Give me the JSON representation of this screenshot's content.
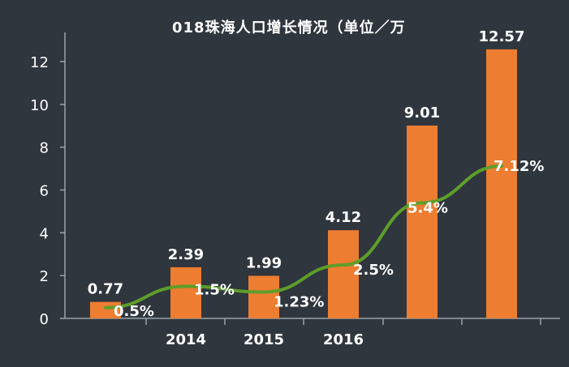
{
  "chart_data": {
    "type": "bar",
    "title": "018珠海人口增长情况（单位／万",
    "categories": [
      "",
      "2014",
      "2015",
      "2016",
      "",
      ""
    ],
    "series": [
      {
        "values": [
          0.77,
          2.39,
          1.99,
          4.12,
          9.01,
          12.57
        ],
        "labels": [
          "0.77",
          "2.39",
          "1.99",
          "4.12",
          "9.01",
          "12.57"
        ]
      },
      {
        "values": [
          0.5,
          1.5,
          1.23,
          2.5,
          5.4,
          7.12
        ],
        "labels": [
          "0.5%",
          "1.5%",
          "1.23%",
          "2.5%",
          "5.4%",
          "7.12%"
        ]
      }
    ],
    "ylim": [
      0,
      13
    ],
    "yticks": [
      0,
      2,
      4,
      6,
      8,
      10,
      12
    ],
    "xlabel": "",
    "ylabel": "",
    "grid": false,
    "colors": {
      "bar": "#ed7d31",
      "line": "#5e9e2a",
      "background": "#2f363e",
      "text": "#ffffff"
    }
  }
}
